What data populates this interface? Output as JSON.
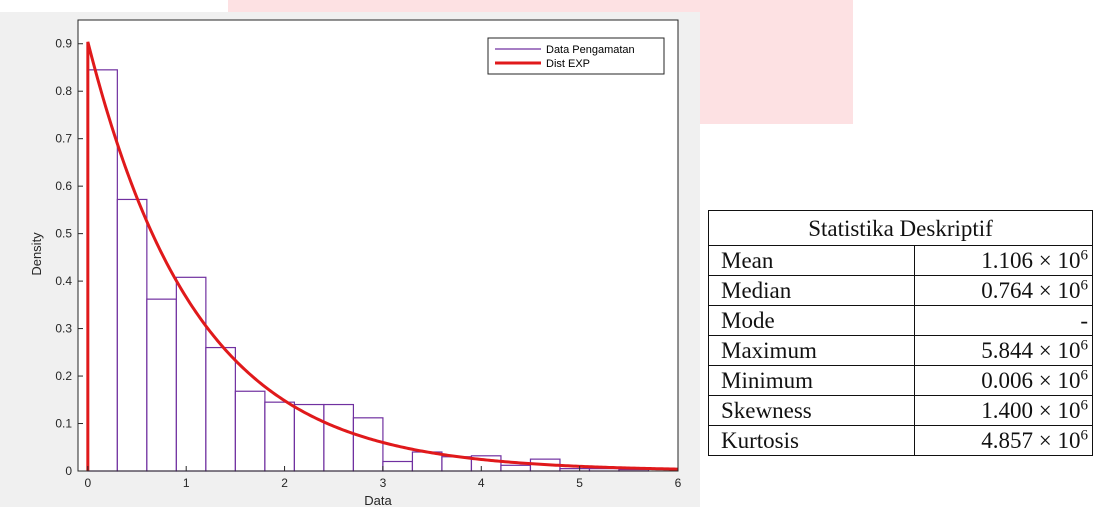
{
  "chart_data": {
    "type": "bar",
    "xlabel": "Data",
    "ylabel": "Density",
    "xlim": [
      -0.1,
      6
    ],
    "ylim": [
      0,
      0.95
    ],
    "xticks": [
      "0",
      "1",
      "2",
      "3",
      "4",
      "5",
      "6"
    ],
    "yticks": [
      "0",
      "0.1",
      "0.2",
      "0.3",
      "0.4",
      "0.5",
      "0.6",
      "0.7",
      "0.8",
      "0.9"
    ],
    "grid": false,
    "legend_position": "top-right",
    "bin_width": 0.3,
    "series": [
      {
        "name": "Data Pengamatan",
        "color": "#7030a0",
        "bin_starts": [
          0.0,
          0.3,
          0.6,
          0.9,
          1.2,
          1.5,
          1.8,
          2.1,
          2.4,
          2.7,
          3.0,
          3.3,
          3.6,
          3.9,
          4.2,
          4.5,
          4.8,
          5.1,
          5.4,
          5.7
        ],
        "values": [
          0.845,
          0.572,
          0.362,
          0.408,
          0.26,
          0.168,
          0.145,
          0.14,
          0.14,
          0.112,
          0.02,
          0.04,
          0.03,
          0.032,
          0.012,
          0.025,
          0.005,
          0.005,
          0.003,
          0.0
        ]
      },
      {
        "name": "Dist EXP",
        "color": "#e0191b",
        "rate": 0.904
      }
    ]
  },
  "stats_table": {
    "title": "Statistika Deskriptif",
    "rows": [
      {
        "name": "Mean",
        "value": "1.106 × 10",
        "exp": "6"
      },
      {
        "name": "Median",
        "value": "0.764 × 10",
        "exp": "6"
      },
      {
        "name": "Mode",
        "value": "-",
        "exp": ""
      },
      {
        "name": "Maximum",
        "value": "5.844 × 10",
        "exp": "6"
      },
      {
        "name": "Minimum",
        "value": "0.006 × 10",
        "exp": "6"
      },
      {
        "name": "Skewness",
        "value": "1.400 × 10",
        "exp": "6"
      },
      {
        "name": "Kurtosis",
        "value": "4.857 × 10",
        "exp": "6"
      }
    ]
  }
}
